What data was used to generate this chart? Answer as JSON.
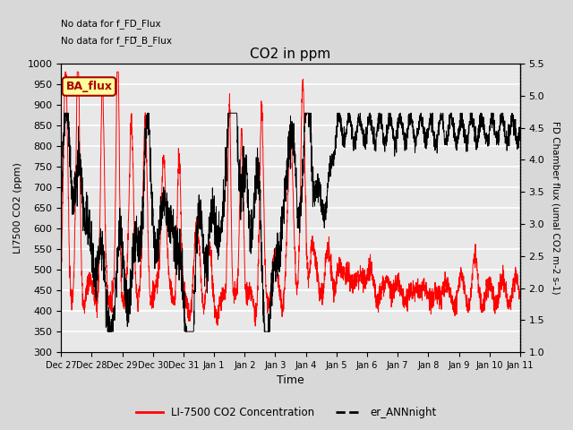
{
  "title": "CO2 in ppm",
  "xlabel": "Time",
  "ylabel_left": "LI7500 CO2 (ppm)",
  "ylabel_right": "FD Chamber flux (umal CO2 m-2 s-1)",
  "ylim_left": [
    300,
    1000
  ],
  "ylim_right": [
    1.0,
    5.5
  ],
  "yticks_left": [
    300,
    350,
    400,
    450,
    500,
    550,
    600,
    650,
    700,
    750,
    800,
    850,
    900,
    950,
    1000
  ],
  "yticks_right": [
    1.0,
    1.5,
    2.0,
    2.5,
    3.0,
    3.5,
    4.0,
    4.5,
    5.0,
    5.5
  ],
  "xtick_labels": [
    "Dec 27",
    "Dec 28",
    "Dec 29",
    "Dec 30",
    "Dec 31",
    "Jan 1",
    "Jan 2",
    "Jan 3",
    "Jan 4",
    "Jan 5",
    "Jan 6",
    "Jan 7",
    "Jan 8",
    "Jan 9",
    "Jan 10",
    "Jan 11"
  ],
  "annotation_text1": "No data for f_FD_Flux",
  "annotation_text2": "No data for f_FD̅_B_Flux",
  "ba_flux_label": "BA_flux",
  "legend_red_label": "LI-7500 CO2 Concentration",
  "legend_black_label": "er_ANNnight",
  "fig_facecolor": "#d8d8d8",
  "plot_bg_color": "#e8e8e8",
  "red_color": "#ff0000",
  "black_color": "#000000",
  "ba_flux_bg": "#ffff99",
  "ba_flux_fg": "#aa0000",
  "grid_color": "#ffffff",
  "n_points": 3000
}
